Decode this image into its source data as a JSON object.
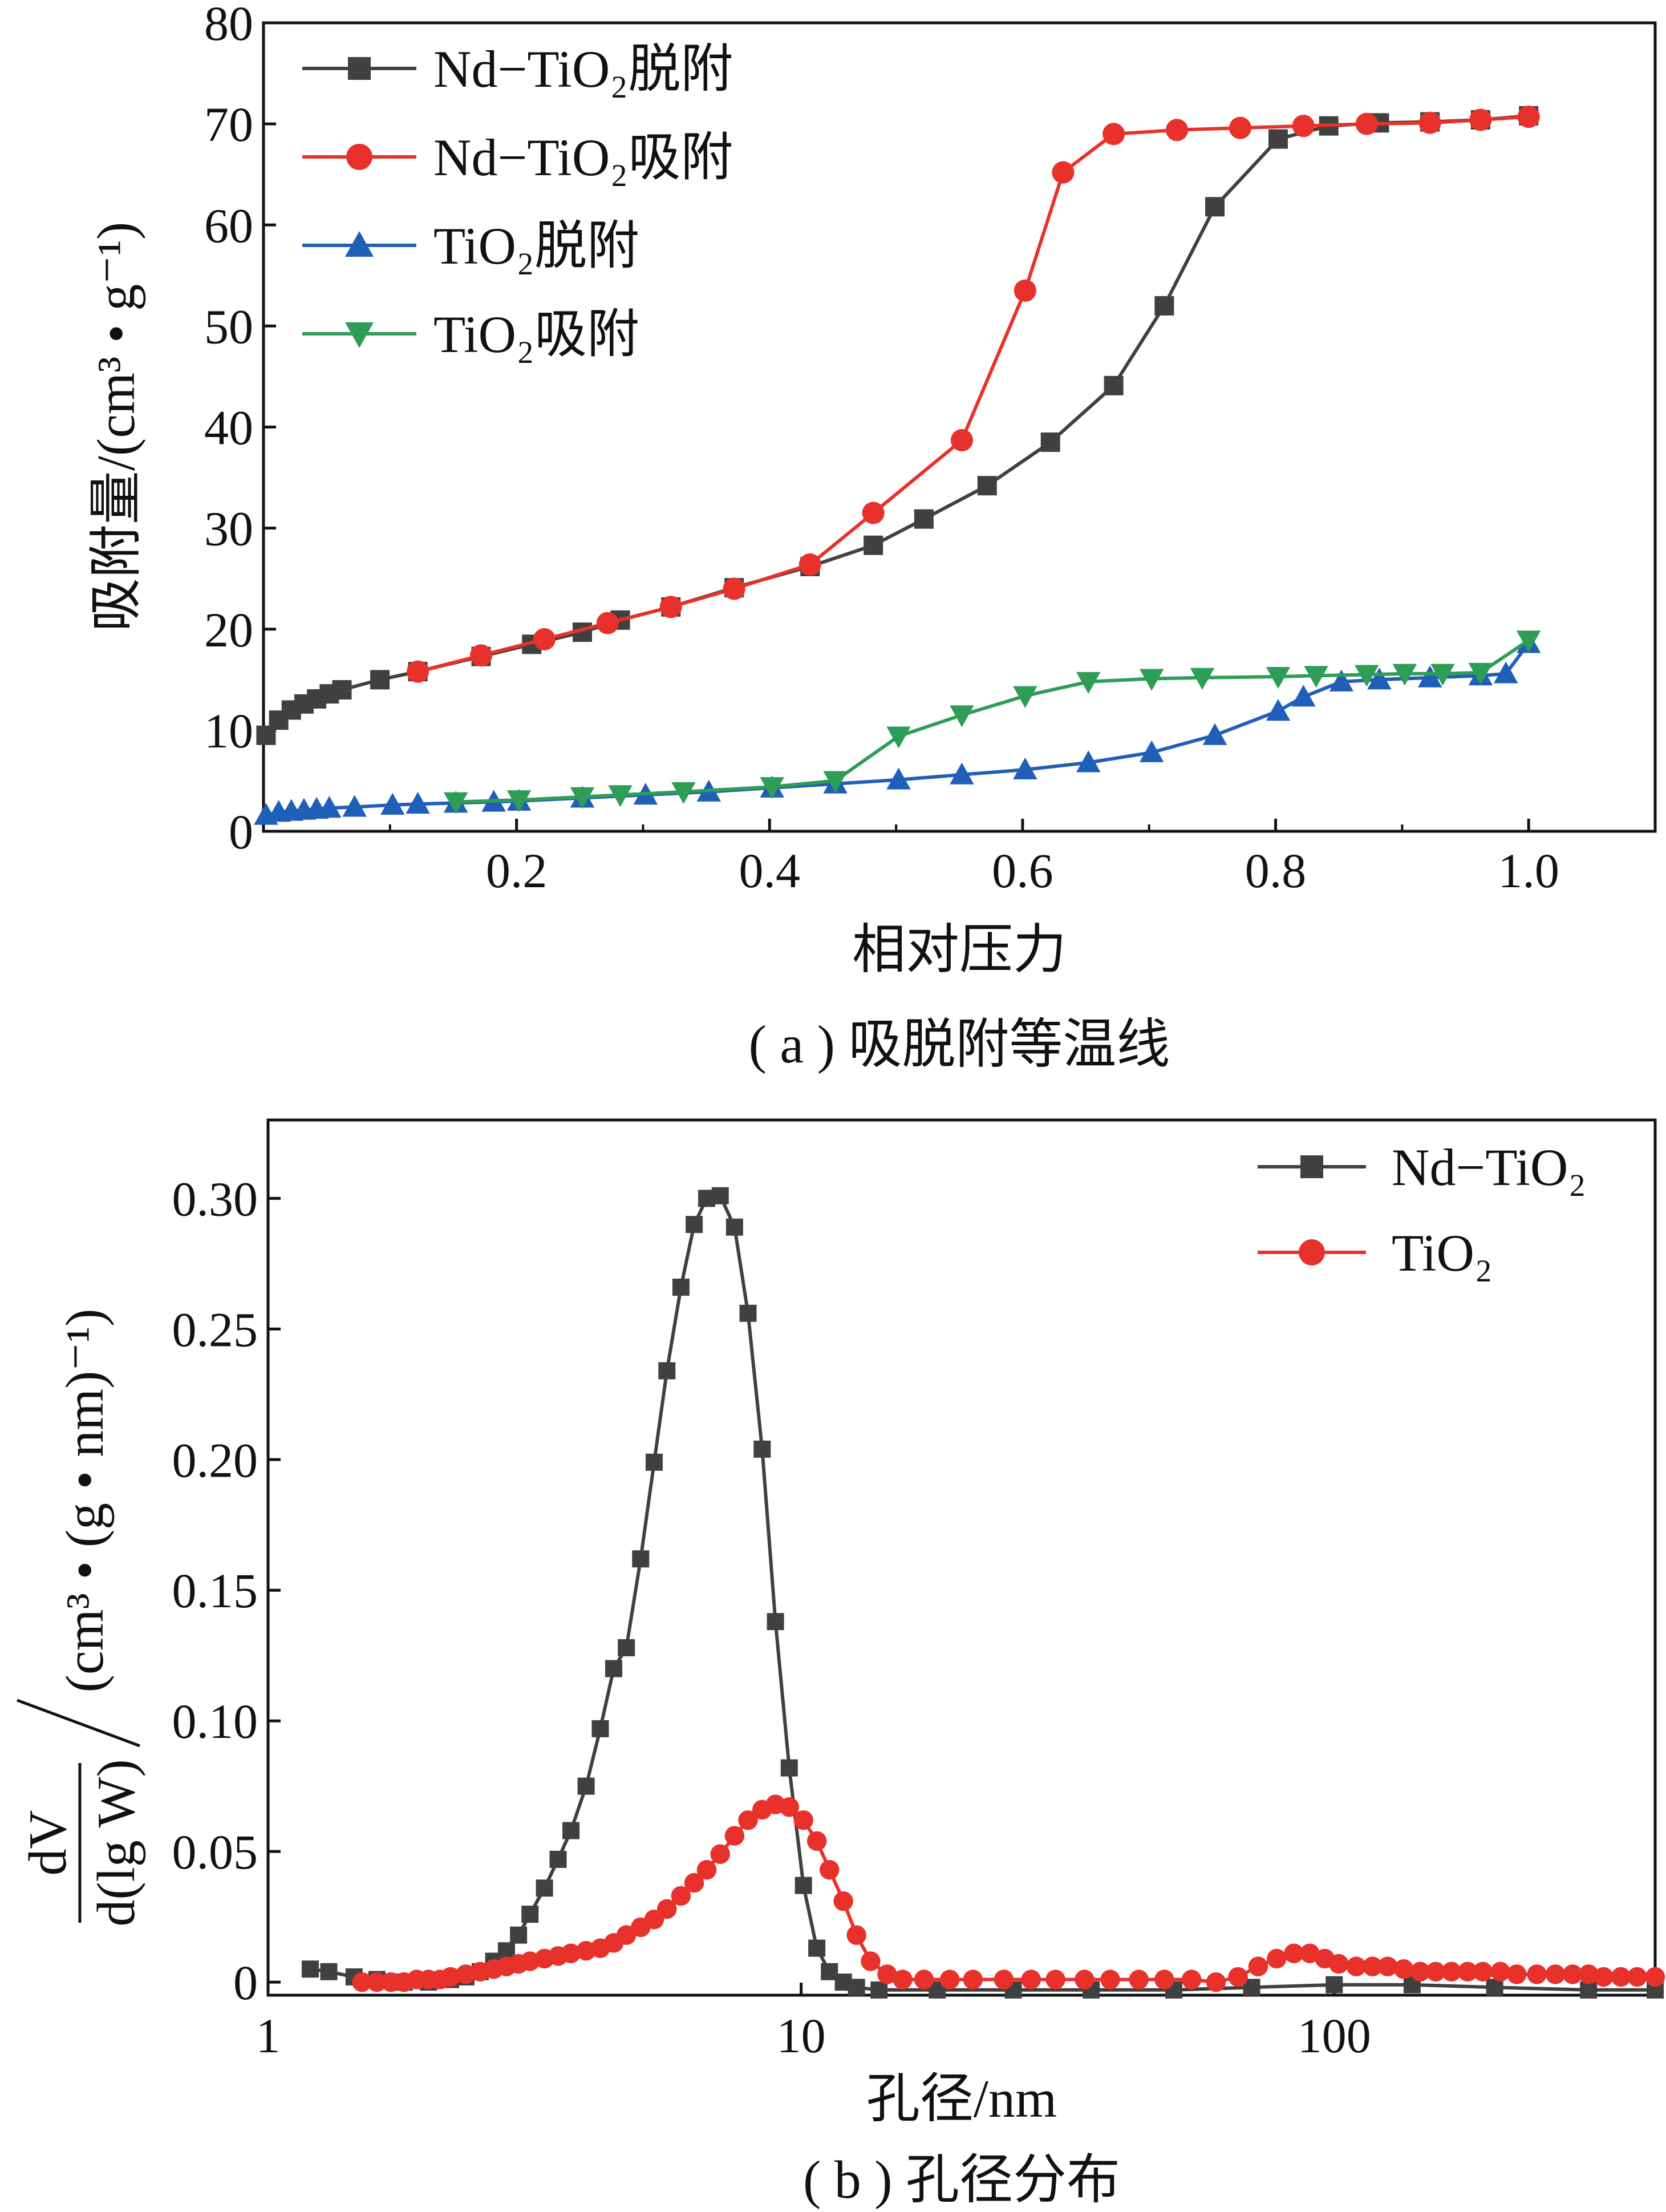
{
  "chart_data": [
    {
      "type": "line",
      "caption": "( a ) 吸脱附等温线",
      "xlabel": "相对压力",
      "ylabel": "吸附量/(cm³ • g⁻¹)",
      "xlim": [
        0,
        1.1
      ],
      "ylim": [
        0,
        80
      ],
      "xticks": [
        "0.2",
        "0.4",
        "0.6",
        "0.8",
        "1.0"
      ],
      "yticks": [
        "0",
        "10",
        "20",
        "30",
        "40",
        "50",
        "60",
        "70",
        "80"
      ],
      "legend_position": "top-left",
      "grid": false,
      "series": [
        {
          "name": "Nd−TiO₂脱附",
          "color": "#404040",
          "marker": "square",
          "x": [
            0.002,
            0.012,
            0.022,
            0.032,
            0.042,
            0.052,
            0.062,
            0.092,
            0.122,
            0.172,
            0.212,
            0.252,
            0.282,
            0.322,
            0.372,
            0.432,
            0.482,
            0.522,
            0.572,
            0.622,
            0.672,
            0.712,
            0.752,
            0.802,
            0.842,
            0.882,
            0.922,
            0.962,
            1.0
          ],
          "y": [
            9.5,
            11.0,
            12.0,
            12.6,
            13.1,
            13.6,
            14.0,
            15.0,
            15.8,
            17.3,
            18.5,
            19.7,
            20.9,
            22.2,
            24.1,
            26.2,
            28.3,
            30.9,
            34.2,
            38.5,
            44.1,
            52.0,
            61.8,
            68.5,
            69.8,
            70.1,
            70.2,
            70.4,
            70.8
          ]
        },
        {
          "name": "Nd−TiO₂吸附",
          "color": "#e8312a",
          "marker": "circle",
          "x": [
            0.122,
            0.172,
            0.222,
            0.272,
            0.322,
            0.372,
            0.432,
            0.482,
            0.552,
            0.602,
            0.632,
            0.672,
            0.722,
            0.772,
            0.822,
            0.872,
            0.922,
            0.962,
            1.0
          ],
          "y": [
            15.8,
            17.4,
            19.0,
            20.6,
            22.2,
            24.0,
            26.4,
            31.5,
            38.7,
            53.5,
            65.2,
            69.0,
            69.4,
            69.6,
            69.8,
            70.0,
            70.1,
            70.4,
            70.7
          ]
        },
        {
          "name": "TiO₂脱附",
          "color": "#1f5fb7",
          "marker": "triangle-up",
          "x": [
            0.002,
            0.012,
            0.022,
            0.032,
            0.042,
            0.052,
            0.072,
            0.102,
            0.122,
            0.152,
            0.182,
            0.202,
            0.252,
            0.302,
            0.352,
            0.402,
            0.452,
            0.502,
            0.552,
            0.602,
            0.652,
            0.702,
            0.752,
            0.802,
            0.822,
            0.852,
            0.882,
            0.922,
            0.962,
            0.982,
            1.0
          ],
          "y": [
            1.6,
            1.9,
            2.0,
            2.1,
            2.2,
            2.3,
            2.4,
            2.6,
            2.7,
            2.8,
            2.9,
            3.0,
            3.3,
            3.6,
            3.9,
            4.3,
            4.7,
            5.1,
            5.6,
            6.1,
            6.8,
            7.8,
            9.5,
            11.9,
            13.3,
            14.8,
            15.0,
            15.2,
            15.4,
            15.6,
            18.6
          ]
        },
        {
          "name": "TiO₂吸附",
          "color": "#2e9d56",
          "marker": "triangle-down",
          "x": [
            0.152,
            0.202,
            0.252,
            0.282,
            0.332,
            0.402,
            0.452,
            0.502,
            0.552,
            0.602,
            0.652,
            0.702,
            0.742,
            0.802,
            0.832,
            0.872,
            0.902,
            0.932,
            0.962,
            1.0
          ],
          "y": [
            2.9,
            3.1,
            3.4,
            3.6,
            3.9,
            4.4,
            5.0,
            9.4,
            11.5,
            13.4,
            14.8,
            15.1,
            15.2,
            15.3,
            15.4,
            15.5,
            15.6,
            15.6,
            15.7,
            18.9
          ]
        }
      ]
    },
    {
      "type": "line",
      "caption": "( b ) 孔径分布",
      "xlabel": "孔径/nm",
      "ylabel_fraction_num": "dV",
      "ylabel_fraction_den": "d(lg W)",
      "ylabel_unit": "(cm³ • (g • nm)⁻¹)",
      "xscale": "log",
      "xlim": [
        1,
        400
      ],
      "ylim": [
        -0.005,
        0.33
      ],
      "xticks": [
        "1",
        "10",
        "100"
      ],
      "yticks": [
        "0",
        "0.05",
        "0.10",
        "0.15",
        "0.20",
        "0.25",
        "0.30"
      ],
      "legend_position": "top-right",
      "grid": false,
      "series": [
        {
          "name": "Nd−TiO₂",
          "color": "#404040",
          "marker": "square",
          "x": [
            1.2,
            1.3,
            1.45,
            1.6,
            1.8,
            2.0,
            2.2,
            2.35,
            2.5,
            2.65,
            2.8,
            2.95,
            3.1,
            3.3,
            3.5,
            3.7,
            3.95,
            4.2,
            4.45,
            4.7,
            5.0,
            5.3,
            5.6,
            5.95,
            6.3,
            6.65,
            7.05,
            7.5,
            7.95,
            8.45,
            8.95,
            9.5,
            10.1,
            10.7,
            11.3,
            12.0,
            12.7,
            14,
            18,
            25,
            35,
            50,
            70,
            100,
            140,
            200,
            300,
            400
          ],
          "y": [
            0.005,
            0.004,
            0.002,
            0.001,
            0.0,
            0.0,
            0.001,
            0.002,
            0.004,
            0.008,
            0.012,
            0.018,
            0.026,
            0.036,
            0.047,
            0.058,
            0.075,
            0.097,
            0.12,
            0.128,
            0.162,
            0.199,
            0.234,
            0.266,
            0.29,
            0.3,
            0.301,
            0.289,
            0.256,
            0.204,
            0.138,
            0.082,
            0.037,
            0.013,
            0.004,
            0.0,
            -0.002,
            -0.003,
            -0.003,
            -0.003,
            -0.003,
            -0.003,
            -0.002,
            -0.001,
            -0.001,
            -0.002,
            -0.003,
            -0.003
          ]
        },
        {
          "name": "TiO₂",
          "color": "#e8312a",
          "marker": "circle",
          "x": [
            1.5,
            1.6,
            1.7,
            1.8,
            1.9,
            2.0,
            2.1,
            2.2,
            2.35,
            2.5,
            2.65,
            2.8,
            2.95,
            3.1,
            3.3,
            3.5,
            3.7,
            3.95,
            4.2,
            4.45,
            4.7,
            5.0,
            5.3,
            5.6,
            5.95,
            6.3,
            6.65,
            7.05,
            7.5,
            7.95,
            8.45,
            8.95,
            9.5,
            10.1,
            10.7,
            11.3,
            12.0,
            12.7,
            13.5,
            14.5,
            15.5,
            17,
            19,
            21,
            24,
            27,
            30,
            34,
            38,
            43,
            48,
            54,
            60,
            66,
            72,
            78,
            84,
            90,
            96,
            102,
            110,
            118,
            126,
            135,
            145,
            155,
            166,
            178,
            190,
            205,
            220,
            240,
            260,
            280,
            300,
            320,
            345,
            370,
            400
          ],
          "y": [
            0.0,
            0.0,
            0.0,
            0.0,
            0.001,
            0.001,
            0.001,
            0.002,
            0.003,
            0.004,
            0.005,
            0.006,
            0.007,
            0.008,
            0.009,
            0.01,
            0.011,
            0.012,
            0.013,
            0.015,
            0.018,
            0.021,
            0.024,
            0.028,
            0.033,
            0.038,
            0.043,
            0.049,
            0.056,
            0.062,
            0.066,
            0.068,
            0.067,
            0.062,
            0.054,
            0.043,
            0.031,
            0.018,
            0.008,
            0.003,
            0.001,
            0.001,
            0.001,
            0.001,
            0.001,
            0.001,
            0.001,
            0.001,
            0.001,
            0.001,
            0.001,
            0.001,
            0.0,
            0.002,
            0.006,
            0.009,
            0.011,
            0.011,
            0.009,
            0.007,
            0.006,
            0.006,
            0.006,
            0.005,
            0.004,
            0.004,
            0.004,
            0.004,
            0.004,
            0.004,
            0.003,
            0.003,
            0.003,
            0.003,
            0.003,
            0.002,
            0.002,
            0.002,
            0.002
          ]
        }
      ]
    }
  ]
}
